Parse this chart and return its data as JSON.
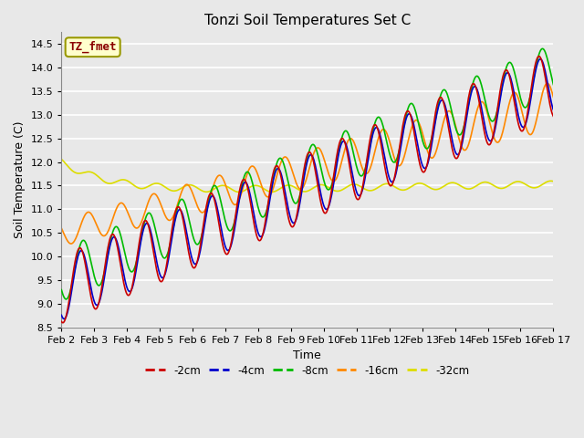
{
  "title": "Tonzi Soil Temperatures Set C",
  "xlabel": "Time",
  "ylabel": "Soil Temperature (C)",
  "ylim": [
    8.5,
    14.75
  ],
  "series_colors": {
    "-2cm": "#cc0000",
    "-4cm": "#0000cc",
    "-8cm": "#00bb00",
    "-16cm": "#ff8800",
    "-32cm": "#dddd00"
  },
  "legend_label": "TZ_fmet",
  "legend_box_facecolor": "#ffffcc",
  "legend_box_edgecolor": "#999900",
  "background_color": "#e8e8e8",
  "grid_color": "#ffffff",
  "x_ticks": [
    "Feb 2",
    "Feb 3",
    "Feb 4",
    "Feb 5",
    "Feb 6",
    "Feb 7",
    "Feb 8",
    "Feb 9",
    "Feb 10",
    "Feb 11",
    "Feb 12",
    "Feb 13",
    "Feb 14",
    "Feb 15",
    "Feb 16",
    "Feb 17"
  ],
  "n_points": 720
}
